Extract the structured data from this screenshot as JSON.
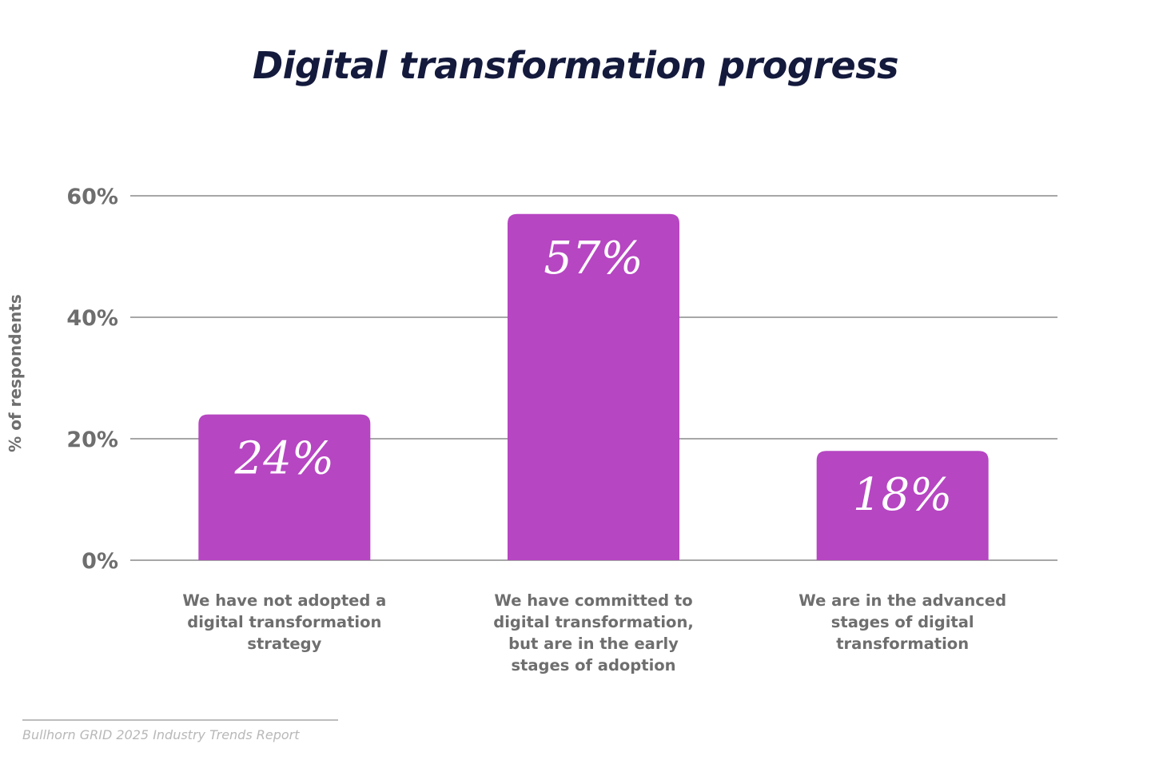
{
  "chart_data": {
    "type": "bar",
    "title": "Digital transformation progress",
    "ylabel": "% of respondents",
    "ylim": [
      0,
      60
    ],
    "yticks": [
      0,
      20,
      40,
      60
    ],
    "ytick_labels": [
      "0%",
      "20%",
      "40%",
      "60%"
    ],
    "grid": true,
    "categories": [
      "We have not adopted a digital transformation strategy",
      "We have committed to digital transformation, but are in the early stages of adoption",
      "We are in the advanced stages of digital transformation"
    ],
    "category_lines": [
      [
        "We have not adopted a",
        "digital transformation",
        "strategy"
      ],
      [
        "We have committed to",
        "digital transformation,",
        "but are in the early",
        "stages of adoption"
      ],
      [
        "We are in the advanced",
        "stages of digital",
        "transformation"
      ]
    ],
    "values": [
      24,
      57,
      18
    ],
    "value_labels": [
      "24%",
      "57%",
      "18%"
    ],
    "bar_color": "#b646c2",
    "grid_color": "#8a8a8a"
  },
  "source": "Bullhorn GRID 2025 Industry Trends Report"
}
